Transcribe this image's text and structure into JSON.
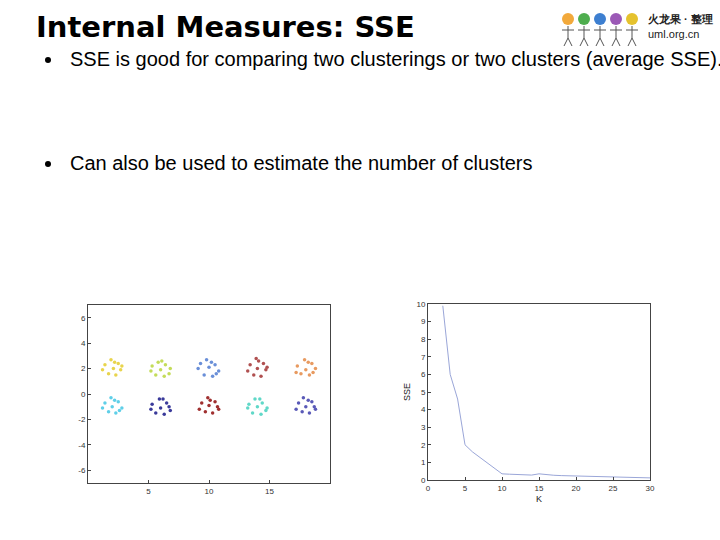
{
  "slide": {
    "title": "Internal Measures: SSE",
    "bullets": [
      "SSE is good for comparing two clusterings or two clusters (average SSE).",
      "Can also be used to estimate the number of clusters"
    ],
    "logo": [
      "火龙果 · 整理",
      "uml.org.cn"
    ]
  },
  "chart_data": [
    {
      "type": "scatter",
      "marker": "circle",
      "xlim": [
        0,
        20
      ],
      "xticks": [
        5,
        10,
        15
      ],
      "ylim": [
        -7,
        7
      ],
      "yticks": [
        -6,
        -4,
        -2,
        0,
        2,
        4,
        6
      ],
      "series": [
        {
          "color": "#e8d44d",
          "x": [
            1.4,
            2.2,
            2.7,
            1.7,
            2.1,
            2.5,
            1.2,
            2.3,
            1.9,
            2.8
          ],
          "y": [
            2.3,
            2.5,
            1.9,
            1.6,
            2.0,
            2.4,
            1.9,
            1.5,
            2.7,
            2.2
          ]
        },
        {
          "color": "#c4dc5a",
          "x": [
            5.3,
            6.1,
            6.8,
            5.6,
            6.0,
            6.4,
            5.2,
            6.3,
            5.8,
            6.7
          ],
          "y": [
            2.2,
            2.6,
            2.0,
            1.5,
            1.9,
            2.3,
            1.8,
            1.4,
            2.5,
            1.6
          ]
        },
        {
          "color": "#6a8fd8",
          "x": [
            9.3,
            10.2,
            10.8,
            9.6,
            10.0,
            10.5,
            9.1,
            10.3,
            9.8,
            10.6
          ],
          "y": [
            2.4,
            2.5,
            1.8,
            1.5,
            2.1,
            2.3,
            2.0,
            1.4,
            2.7,
            1.6
          ]
        },
        {
          "color": "#b05050",
          "x": [
            13.4,
            14.1,
            14.7,
            13.7,
            14.0,
            14.5,
            13.2,
            14.3,
            13.9,
            14.8
          ],
          "y": [
            2.3,
            2.6,
            1.9,
            1.5,
            2.0,
            2.4,
            1.8,
            1.4,
            2.8,
            2.1
          ]
        },
        {
          "color": "#e89a60",
          "x": [
            17.3,
            18.2,
            18.8,
            17.6,
            18.0,
            18.5,
            17.2,
            18.3,
            17.9,
            18.6
          ],
          "y": [
            2.2,
            2.5,
            2.0,
            1.6,
            1.9,
            2.4,
            1.7,
            1.5,
            2.7,
            1.7
          ]
        },
        {
          "color": "#5fcfe8",
          "x": [
            1.4,
            2.2,
            2.8,
            1.7,
            2.0,
            2.5,
            1.2,
            2.3,
            1.9,
            2.6
          ],
          "y": [
            -0.7,
            -0.5,
            -1.1,
            -1.4,
            -1.0,
            -0.6,
            -1.1,
            -1.5,
            -0.3,
            -1.3
          ]
        },
        {
          "color": "#3a3a9a",
          "x": [
            5.3,
            6.2,
            6.7,
            5.6,
            6.0,
            6.5,
            5.2,
            6.3,
            5.9,
            6.8
          ],
          "y": [
            -0.8,
            -0.4,
            -1.0,
            -1.5,
            -1.1,
            -0.7,
            -1.2,
            -1.6,
            -0.4,
            -1.3
          ]
        },
        {
          "color": "#a03030",
          "x": [
            9.4,
            10.1,
            10.7,
            9.7,
            10.0,
            10.5,
            9.2,
            10.3,
            9.9,
            10.8
          ],
          "y": [
            -0.7,
            -0.5,
            -1.0,
            -1.4,
            -0.9,
            -0.6,
            -1.2,
            -1.5,
            -0.3,
            -1.2
          ]
        },
        {
          "color": "#60d8c8",
          "x": [
            13.3,
            14.2,
            14.8,
            13.6,
            14.0,
            14.4,
            13.2,
            14.3,
            13.8,
            14.7
          ],
          "y": [
            -0.8,
            -0.4,
            -1.1,
            -1.5,
            -1.0,
            -0.7,
            -1.1,
            -1.6,
            -0.4,
            -1.3
          ]
        },
        {
          "color": "#5a5ab8",
          "x": [
            17.4,
            18.2,
            18.7,
            17.7,
            18.0,
            18.5,
            17.2,
            18.3,
            17.8,
            18.8
          ],
          "y": [
            -0.7,
            -0.5,
            -1.0,
            -1.4,
            -1.0,
            -0.6,
            -1.2,
            -1.5,
            -0.3,
            -1.2
          ]
        }
      ]
    },
    {
      "type": "line",
      "color": "#9aa6d8",
      "xlabel": "K",
      "ylabel": "SSE",
      "x": [
        2,
        3,
        4,
        5,
        6,
        7,
        8,
        9,
        10,
        11,
        12,
        13,
        14,
        15,
        16,
        17,
        18,
        19,
        20,
        21,
        22,
        23,
        24,
        25,
        26,
        27,
        28,
        29,
        30
      ],
      "values": [
        9.9,
        6.0,
        4.6,
        2.0,
        1.6,
        1.3,
        1.0,
        0.7,
        0.35,
        0.33,
        0.32,
        0.3,
        0.28,
        0.35,
        0.3,
        0.27,
        0.25,
        0.24,
        0.22,
        0.2,
        0.2,
        0.18,
        0.17,
        0.2,
        0.16,
        0.15,
        0.14,
        0.12,
        0.12
      ],
      "xlim": [
        0,
        30
      ],
      "xticks": [
        0,
        5,
        10,
        15,
        20,
        25,
        30
      ],
      "ylim": [
        0,
        10
      ],
      "yticks": [
        0,
        1,
        2,
        3,
        4,
        5,
        6,
        7,
        8,
        9,
        10
      ]
    }
  ]
}
